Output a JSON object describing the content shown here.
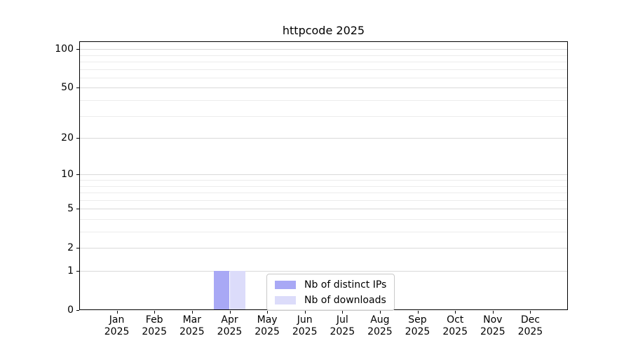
{
  "chart_data": {
    "type": "bar",
    "title": "httpcode 2025",
    "year_label": "2025",
    "categories": [
      "Jan",
      "Feb",
      "Mar",
      "Apr",
      "May",
      "Jun",
      "Jul",
      "Aug",
      "Sep",
      "Oct",
      "Nov",
      "Dec"
    ],
    "series": [
      {
        "name": "Nb of distinct IPs",
        "color": "#a8a8f5",
        "values": [
          0,
          0,
          0,
          1,
          0,
          0,
          0,
          0,
          0,
          0,
          0,
          0
        ]
      },
      {
        "name": "Nb of downloads",
        "color": "#dcdcfa",
        "values": [
          0,
          0,
          0,
          1,
          0,
          0,
          0,
          0,
          0,
          0,
          0,
          0
        ]
      }
    ],
    "yticks": [
      0,
      1,
      2,
      5,
      10,
      20,
      50,
      100
    ],
    "grid_values": [
      1,
      2,
      3,
      4,
      5,
      6,
      7,
      8,
      9,
      10,
      20,
      30,
      40,
      50,
      60,
      70,
      80,
      90,
      100
    ],
    "yscale": "log10(1+x)",
    "ylim": [
      0,
      115
    ],
    "xlabel": "",
    "ylabel": "",
    "grid": "horizontal",
    "legend_position": "lower center"
  }
}
